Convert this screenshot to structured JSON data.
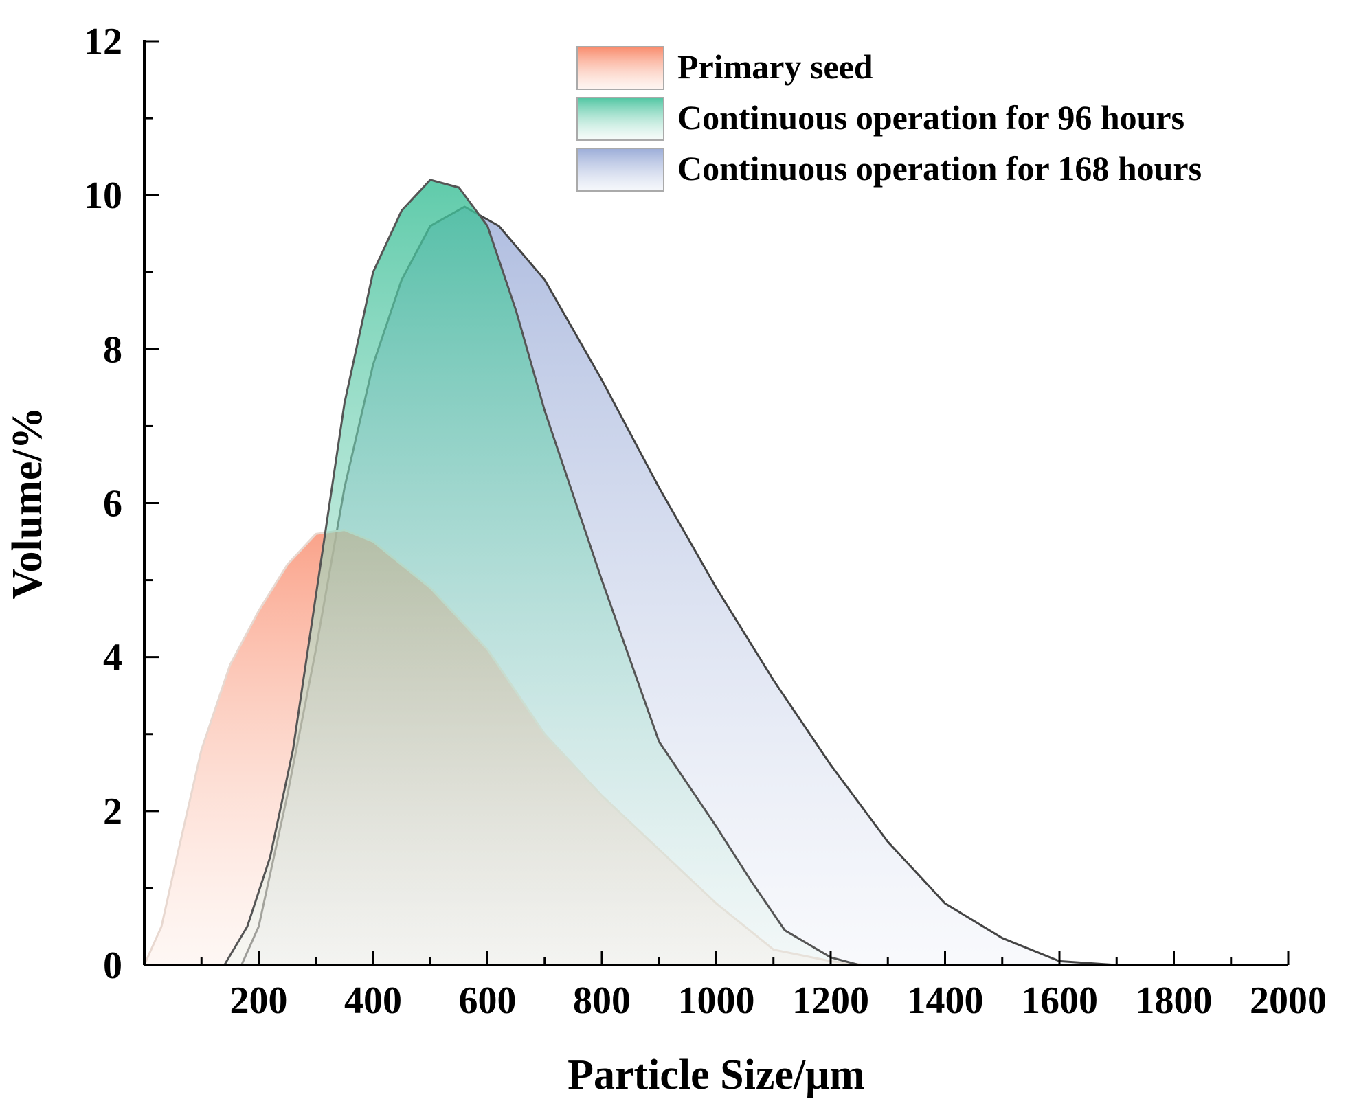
{
  "chart_data": {
    "type": "area",
    "title": "",
    "xlabel": "Particle Size/μm",
    "ylabel": "Volume/%",
    "xlim": [
      0,
      2000
    ],
    "ylim": [
      0,
      12
    ],
    "xticks": [
      200,
      400,
      600,
      800,
      1000,
      1200,
      1400,
      1600,
      1800,
      2000
    ],
    "yticks": [
      0,
      2,
      4,
      6,
      8,
      10,
      12
    ],
    "grid": false,
    "legend_position": "top-right",
    "series": [
      {
        "name": "Primary seed",
        "color": "#f98b6c",
        "x": [
          0,
          30,
          60,
          100,
          150,
          200,
          250,
          300,
          350,
          400,
          450,
          500,
          600,
          700,
          800,
          900,
          1000,
          1100,
          1200,
          1260
        ],
        "y": [
          0,
          0.5,
          1.5,
          2.8,
          3.9,
          4.6,
          5.2,
          5.6,
          5.65,
          5.5,
          5.2,
          4.9,
          4.1,
          3.0,
          2.2,
          1.5,
          0.8,
          0.2,
          0.05,
          0
        ]
      },
      {
        "name": "Continuous operation for 96 hours",
        "color": "#3bbf97",
        "x": [
          140,
          180,
          220,
          260,
          300,
          350,
          400,
          450,
          500,
          550,
          600,
          650,
          700,
          800,
          900,
          1000,
          1060,
          1120,
          1200,
          1250
        ],
        "y": [
          0,
          0.5,
          1.4,
          2.8,
          4.8,
          7.3,
          9.0,
          9.8,
          10.2,
          10.1,
          9.6,
          8.5,
          7.2,
          5.0,
          2.9,
          1.8,
          1.1,
          0.45,
          0.1,
          0
        ]
      },
      {
        "name": "Continuous operation for 168 hours",
        "color": "#8a9ed1",
        "x": [
          170,
          200,
          250,
          300,
          350,
          400,
          450,
          500,
          560,
          620,
          700,
          800,
          900,
          1000,
          1100,
          1200,
          1300,
          1400,
          1500,
          1600,
          1700
        ],
        "y": [
          0,
          0.5,
          2.2,
          4.1,
          6.2,
          7.8,
          8.9,
          9.6,
          9.85,
          9.6,
          8.9,
          7.6,
          6.2,
          4.9,
          3.7,
          2.6,
          1.6,
          0.8,
          0.35,
          0.05,
          0
        ]
      }
    ]
  }
}
